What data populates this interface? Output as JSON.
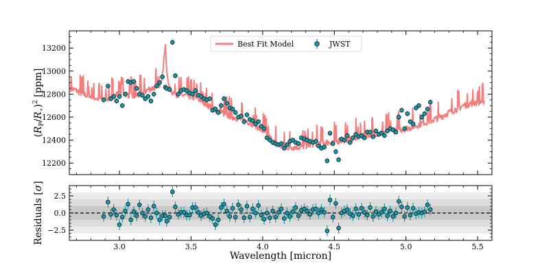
{
  "chart_data": [
    {
      "type": "line",
      "panel": "top",
      "title": "",
      "xlabel": "",
      "ylabel": "(R_P/R_⋆)^2 [ppm]",
      "ylabel_parts": {
        "open": "(",
        "R": "R",
        "P": "P",
        "slash": "/",
        "star": "⋆",
        "close": ")",
        "exp": "2",
        "unit": " [ppm]"
      },
      "xlim": [
        2.65,
        5.6
      ],
      "ylim": [
        12100,
        13350
      ],
      "xticks": [
        3.0,
        3.5,
        4.0,
        4.5,
        5.0,
        5.5
      ],
      "yticks": [
        12200,
        12400,
        12600,
        12800,
        13000,
        13200
      ],
      "ytick_labels": [
        "12200",
        "12400",
        "12600",
        "12800",
        "13000",
        "13200"
      ],
      "legend": {
        "placement": "top-center",
        "entries": [
          {
            "label": "Best Fit Model",
            "kind": "line",
            "color": "#f47c7c"
          },
          {
            "label": "JWST",
            "kind": "errorbar",
            "color": "#1a9ba8"
          }
        ]
      },
      "model": {
        "name": "Best Fit Model",
        "color": "#f47c7c",
        "x": [
          2.66,
          2.7,
          2.75,
          2.8,
          2.85,
          2.9,
          2.95,
          3.0,
          3.05,
          3.1,
          3.15,
          3.2,
          3.25,
          3.28,
          3.3,
          3.31,
          3.32,
          3.33,
          3.35,
          3.4,
          3.45,
          3.5,
          3.55,
          3.6,
          3.65,
          3.7,
          3.75,
          3.8,
          3.85,
          3.9,
          3.95,
          4.0,
          4.05,
          4.1,
          4.15,
          4.2,
          4.25,
          4.3,
          4.35,
          4.4,
          4.45,
          4.5,
          4.55,
          4.6,
          4.65,
          4.7,
          4.75,
          4.8,
          4.85,
          4.9,
          4.95,
          5.0,
          5.05,
          5.1,
          5.15,
          5.2,
          5.25,
          5.3,
          5.35,
          5.4,
          5.45,
          5.5,
          5.55
        ],
        "y": [
          12850,
          12830,
          12800,
          12780,
          12760,
          12760,
          12780,
          12820,
          12800,
          12780,
          12800,
          12840,
          12860,
          12880,
          12950,
          13100,
          13230,
          13000,
          12830,
          12800,
          12790,
          12780,
          12760,
          12720,
          12680,
          12650,
          12620,
          12600,
          12580,
          12560,
          12530,
          12480,
          12420,
          12360,
          12340,
          12340,
          12340,
          12350,
          12370,
          12380,
          12380,
          12390,
          12400,
          12410,
          12420,
          12440,
          12450,
          12460,
          12470,
          12480,
          12490,
          12500,
          12520,
          12540,
          12560,
          12580,
          12610,
          12640,
          12670,
          12700,
          12720,
          12730,
          12740
        ],
        "spike_amplitude": 120
      },
      "series": [
        {
          "name": "JWST",
          "color": "#1a9ba8",
          "x": [
            2.89,
            2.92,
            2.94,
            2.96,
            2.98,
            3.0,
            3.02,
            3.04,
            3.06,
            3.08,
            3.1,
            3.12,
            3.14,
            3.16,
            3.18,
            3.2,
            3.22,
            3.24,
            3.26,
            3.28,
            3.3,
            3.32,
            3.33,
            3.35,
            3.37,
            3.39,
            3.41,
            3.43,
            3.45,
            3.47,
            3.49,
            3.51,
            3.53,
            3.55,
            3.57,
            3.59,
            3.61,
            3.63,
            3.65,
            3.67,
            3.69,
            3.71,
            3.73,
            3.75,
            3.77,
            3.79,
            3.81,
            3.83,
            3.85,
            3.87,
            3.89,
            3.91,
            3.93,
            3.95,
            3.97,
            3.99,
            4.01,
            4.03,
            4.05,
            4.07,
            4.09,
            4.11,
            4.13,
            4.15,
            4.17,
            4.19,
            4.21,
            4.23,
            4.25,
            4.27,
            4.29,
            4.31,
            4.33,
            4.35,
            4.37,
            4.39,
            4.41,
            4.43,
            4.45,
            4.47,
            4.49,
            4.51,
            4.53,
            4.55,
            4.57,
            4.59,
            4.61,
            4.63,
            4.65,
            4.67,
            4.69,
            4.71,
            4.73,
            4.75,
            4.77,
            4.79,
            4.81,
            4.83,
            4.85,
            4.87,
            4.89,
            4.91,
            4.93,
            4.95,
            4.97,
            4.99,
            5.01,
            5.03,
            5.05,
            5.07,
            5.09,
            5.11,
            5.13,
            5.15,
            5.17
          ],
          "y": [
            12750,
            12870,
            12760,
            12780,
            12740,
            12780,
            12700,
            12800,
            12910,
            12900,
            12910,
            12850,
            12800,
            12790,
            12760,
            12780,
            12740,
            12800,
            12870,
            12900,
            12950,
            12860,
            12850,
            12840,
            13250,
            12960,
            12800,
            12830,
            12840,
            12830,
            12810,
            12800,
            12830,
            12790,
            12780,
            12760,
            12750,
            12760,
            12660,
            12670,
            12640,
            12700,
            12760,
            12720,
            12680,
            12670,
            12640,
            12600,
            12610,
            12560,
            12620,
            12580,
            12570,
            12540,
            12560,
            12520,
            12500,
            12420,
            12400,
            12380,
            12370,
            12360,
            12370,
            12330,
            12360,
            12390,
            12400,
            12380,
            12370,
            12420,
            12410,
            12400,
            12390,
            12380,
            12390,
            12350,
            12330,
            12340,
            12220,
            12460,
            12370,
            12300,
            12230,
            12410,
            12400,
            12440,
            12380,
            12420,
            12450,
            12430,
            12440,
            12420,
            12470,
            12470,
            12430,
            12480,
            12450,
            12460,
            12440,
            12480,
            12500,
            12490,
            12470,
            12600,
            12660,
            12500,
            12630,
            12560,
            12540,
            12680,
            12700,
            12600,
            12630,
            12670,
            12730
          ],
          "yerr": 22
        }
      ]
    },
    {
      "type": "scatter",
      "panel": "bottom",
      "title": "",
      "xlabel": "Wavelength [micron]",
      "ylabel": "Residuals [σ]",
      "ylabel_parts": {
        "text": "Residuals [",
        "sigma": "σ",
        "close": "]"
      },
      "xlim": [
        2.65,
        5.6
      ],
      "ylim": [
        -4.0,
        4.0
      ],
      "xticks": [
        3.0,
        3.5,
        4.0,
        4.5,
        5.0,
        5.5
      ],
      "xtick_labels": [
        "3.0",
        "3.5",
        "4.0",
        "4.5",
        "5.0",
        "5.5"
      ],
      "yticks": [
        -2.5,
        0.0,
        2.5
      ],
      "ytick_labels": [
        "−2.5",
        "0.0",
        "2.5"
      ],
      "bands": [
        {
          "sigma": 3,
          "color": "#ececec"
        },
        {
          "sigma": 2,
          "color": "#dddddd"
        },
        {
          "sigma": 1,
          "color": "#c9c9c9"
        }
      ],
      "zero_line": {
        "value": 0,
        "style": "dashed"
      },
      "series": [
        {
          "name": "Residuals",
          "color": "#1a9ba8",
          "x": [
            2.89,
            2.92,
            2.94,
            2.96,
            2.98,
            3.0,
            3.02,
            3.04,
            3.06,
            3.08,
            3.1,
            3.12,
            3.14,
            3.16,
            3.18,
            3.2,
            3.22,
            3.24,
            3.26,
            3.28,
            3.3,
            3.32,
            3.33,
            3.35,
            3.37,
            3.39,
            3.41,
            3.43,
            3.45,
            3.47,
            3.49,
            3.51,
            3.53,
            3.55,
            3.57,
            3.59,
            3.61,
            3.63,
            3.65,
            3.67,
            3.69,
            3.71,
            3.73,
            3.75,
            3.77,
            3.79,
            3.81,
            3.83,
            3.85,
            3.87,
            3.89,
            3.91,
            3.93,
            3.95,
            3.97,
            3.99,
            4.01,
            4.03,
            4.05,
            4.07,
            4.09,
            4.11,
            4.13,
            4.15,
            4.17,
            4.19,
            4.21,
            4.23,
            4.25,
            4.27,
            4.29,
            4.31,
            4.33,
            4.35,
            4.37,
            4.39,
            4.41,
            4.43,
            4.45,
            4.47,
            4.49,
            4.51,
            4.53,
            4.55,
            4.57,
            4.59,
            4.61,
            4.63,
            4.65,
            4.67,
            4.69,
            4.71,
            4.73,
            4.75,
            4.77,
            4.79,
            4.81,
            4.83,
            4.85,
            4.87,
            4.89,
            4.91,
            4.93,
            4.95,
            4.97,
            4.99,
            5.01,
            5.03,
            5.05,
            5.07,
            5.09,
            5.11,
            5.13,
            5.15,
            5.17
          ],
          "y": [
            -0.5,
            1.6,
            -0.2,
            0.5,
            -0.3,
            -1.7,
            -0.6,
            0.3,
            1.3,
            -1.0,
            0.2,
            -0.4,
            1.2,
            0.0,
            -0.5,
            0.5,
            -0.7,
            1.0,
            0.0,
            -1.0,
            -0.4,
            -0.4,
            -1.2,
            -0.6,
            3.1,
            0.9,
            -0.2,
            0.1,
            0.1,
            -0.3,
            -0.3,
            0.8,
            0.8,
            0.1,
            -0.4,
            -0.1,
            0.0,
            -0.5,
            -0.8,
            -1.7,
            -1.0,
            0.8,
            1.3,
            0.3,
            -0.5,
            0.7,
            -0.6,
            1.2,
            0.5,
            -0.7,
            1.0,
            -0.6,
            0.6,
            0.0,
            1.1,
            -0.3,
            -0.9,
            0.0,
            -0.7,
            0.3,
            -0.6,
            0.1,
            0.6,
            -0.8,
            0.0,
            -0.5,
            0.2,
            0.8,
            -0.4,
            0.4,
            0.6,
            0.3,
            -0.2,
            0.5,
            0.6,
            0.0,
            0.5,
            0.1,
            -2.6,
            1.9,
            -0.6,
            1.4,
            -2.2,
            0.0,
            0.3,
            0.5,
            -0.1,
            -0.4,
            0.6,
            -0.2,
            0.7,
            0.1,
            -0.3,
            0.8,
            -0.5,
            0.2,
            -0.2,
            0.1,
            0.6,
            -0.4,
            0.3,
            -0.5,
            0.0,
            1.7,
            0.9,
            -0.5,
            0.8,
            -0.3,
            0.7,
            -0.1,
            0.1,
            0.0,
            0.2,
            1.2,
            0.5
          ],
          "yerr": 0.8
        }
      ]
    }
  ]
}
